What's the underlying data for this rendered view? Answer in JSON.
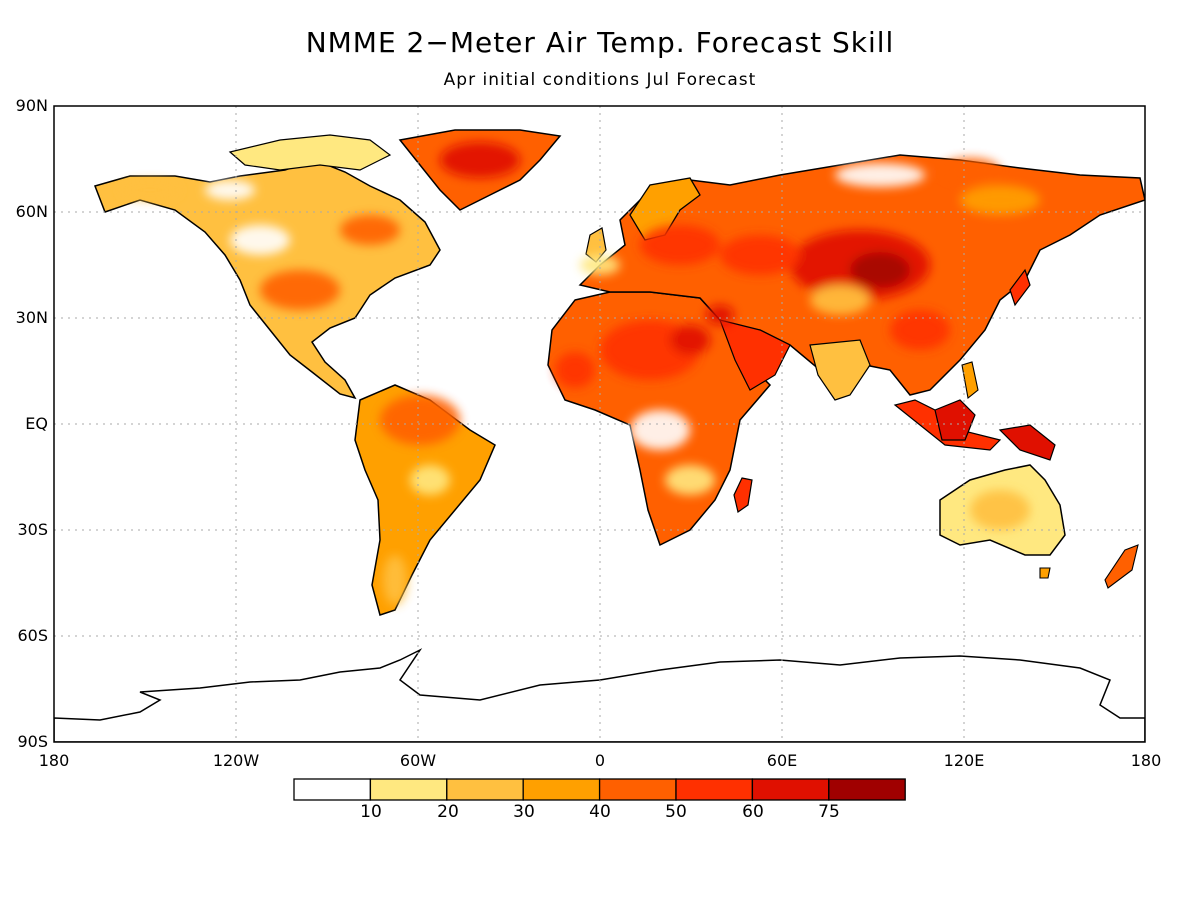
{
  "map": {
    "title": "NMME 2−Meter Air Temp. Forecast Skill",
    "subtitle": "Apr initial conditions   Jul Forecast",
    "lat_labels": [
      "90N",
      "60N",
      "30N",
      "EQ",
      "30S",
      "60S",
      "90S"
    ],
    "lon_labels": [
      "180",
      "120W",
      "60W",
      "0",
      "60E",
      "120E",
      "180"
    ],
    "colorbar": {
      "thresholds": [
        "10",
        "20",
        "30",
        "40",
        "50",
        "60",
        "75"
      ],
      "colors": [
        "#ffffff",
        "#ffe880",
        "#ffc040",
        "#ffa000",
        "#ff6000",
        "#ff3000",
        "#e01000",
        "#a00000"
      ]
    }
  }
}
